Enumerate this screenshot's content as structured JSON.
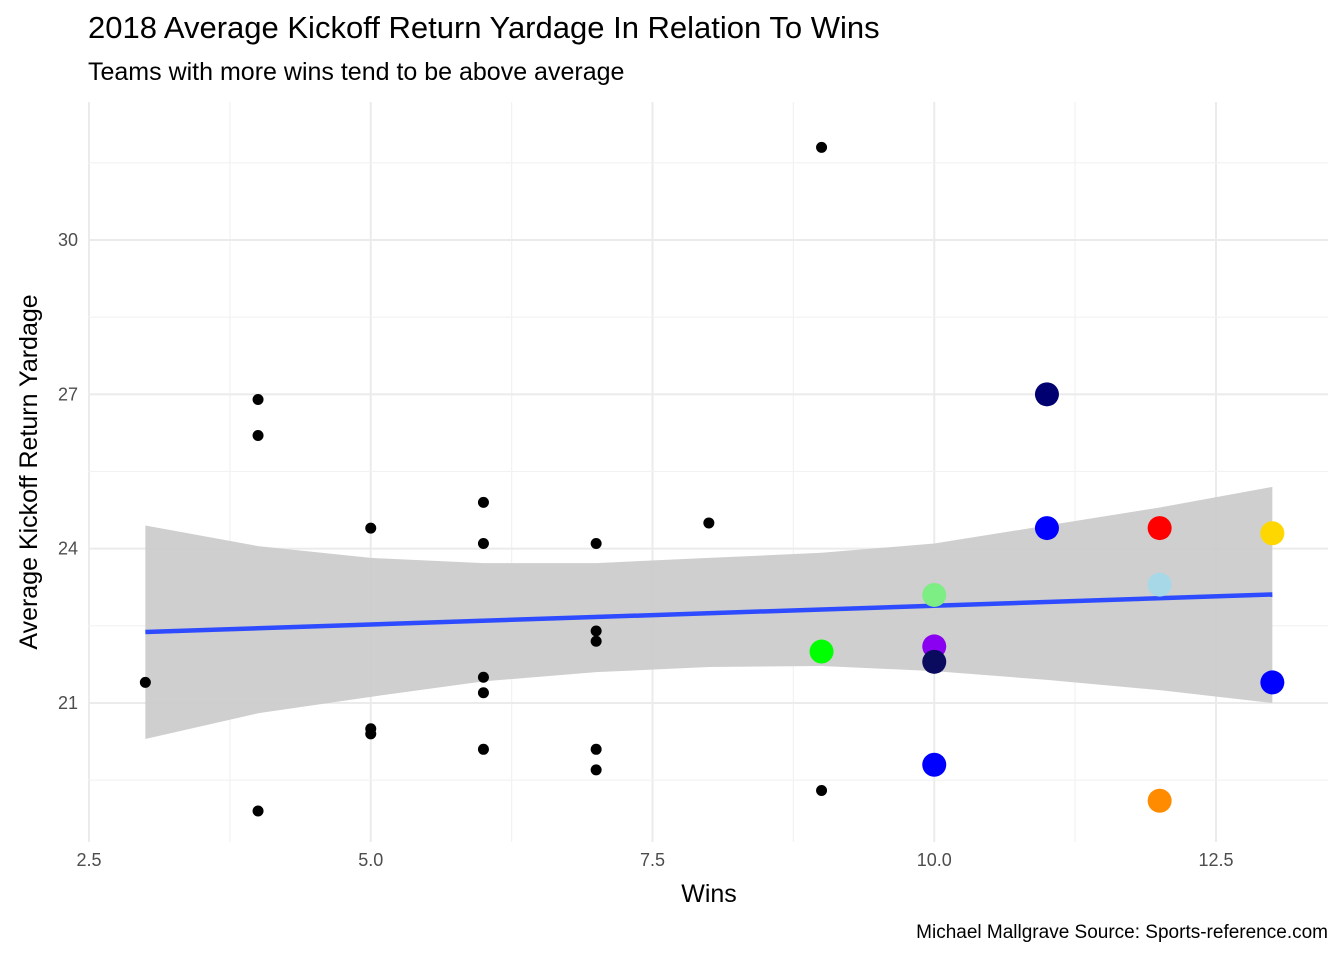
{
  "chart_data": {
    "type": "scatter",
    "title": "2018 Average Kickoff Return Yardage In Relation To Wins",
    "subtitle": "Teams with more wins tend to be above average",
    "caption": "Michael Mallgrave Source: Sports-reference.com",
    "xlabel": "Wins",
    "ylabel": "Average Kickoff Return Yardage",
    "xlim": [
      2.5,
      13.5
    ],
    "ylim": [
      18.2,
      32.2
    ],
    "x_ticks": [
      2.5,
      5.0,
      7.5,
      10.0,
      12.5
    ],
    "x_tick_labels": [
      "2.5",
      "5.0",
      "7.5",
      "10.0",
      "12.5"
    ],
    "y_ticks": [
      21,
      24,
      27,
      30
    ],
    "y_tick_labels": [
      "21",
      "24",
      "27",
      "30"
    ],
    "grid": true,
    "series": [
      {
        "color": "#000000",
        "points": [
          {
            "x": 3,
            "y": 21.4
          },
          {
            "x": 4,
            "y": 26.9
          },
          {
            "x": 4,
            "y": 26.2
          },
          {
            "x": 4,
            "y": 18.9
          },
          {
            "x": 5,
            "y": 24.4
          },
          {
            "x": 5,
            "y": 20.5
          },
          {
            "x": 5,
            "y": 20.4
          },
          {
            "x": 6,
            "y": 24.9
          },
          {
            "x": 6,
            "y": 24.1
          },
          {
            "x": 6,
            "y": 21.5
          },
          {
            "x": 6,
            "y": 21.2
          },
          {
            "x": 6,
            "y": 20.1
          },
          {
            "x": 7,
            "y": 24.1
          },
          {
            "x": 7,
            "y": 22.4
          },
          {
            "x": 7,
            "y": 22.2
          },
          {
            "x": 7,
            "y": 20.1
          },
          {
            "x": 7,
            "y": 19.7
          },
          {
            "x": 8,
            "y": 24.5
          },
          {
            "x": 9,
            "y": 31.8
          },
          {
            "x": 9,
            "y": 19.3
          }
        ]
      },
      {
        "highlight": true,
        "points": [
          {
            "x": 9,
            "y": 22.0,
            "color": "#00ff00"
          },
          {
            "x": 10,
            "y": 23.1,
            "color": "#7cee84"
          },
          {
            "x": 10,
            "y": 22.1,
            "color": "#8a00f0"
          },
          {
            "x": 10,
            "y": 21.8,
            "color": "#0a0a5e"
          },
          {
            "x": 10,
            "y": 19.8,
            "color": "#0000ff"
          },
          {
            "x": 11,
            "y": 27.0,
            "color": "#000070"
          },
          {
            "x": 11,
            "y": 24.4,
            "color": "#0000ff"
          },
          {
            "x": 12,
            "y": 24.4,
            "color": "#ff0000"
          },
          {
            "x": 12,
            "y": 23.3,
            "color": "#a6d8e8"
          },
          {
            "x": 12,
            "y": 19.1,
            "color": "#ff8c00"
          },
          {
            "x": 13,
            "y": 24.3,
            "color": "#ffd700"
          },
          {
            "x": 13,
            "y": 21.4,
            "color": "#0000ff"
          }
        ]
      }
    ],
    "trend_line": {
      "method": "lm",
      "color": "#2e4bff",
      "x": [
        3,
        13
      ],
      "y": [
        22.38,
        23.11
      ],
      "band_color": "#cccccc",
      "band": [
        {
          "x": 3,
          "lo": 20.3,
          "hi": 24.45
        },
        {
          "x": 4,
          "lo": 20.8,
          "hi": 24.05
        },
        {
          "x": 5,
          "lo": 21.12,
          "hi": 23.82
        },
        {
          "x": 6,
          "lo": 21.42,
          "hi": 23.72
        },
        {
          "x": 7,
          "lo": 21.6,
          "hi": 23.72
        },
        {
          "x": 8,
          "lo": 21.7,
          "hi": 23.82
        },
        {
          "x": 9,
          "lo": 21.72,
          "hi": 23.92
        },
        {
          "x": 10,
          "lo": 21.62,
          "hi": 24.1
        },
        {
          "x": 11,
          "lo": 21.45,
          "hi": 24.45
        },
        {
          "x": 12,
          "lo": 21.25,
          "hi": 24.8
        },
        {
          "x": 13,
          "lo": 21.0,
          "hi": 25.2
        }
      ]
    }
  }
}
